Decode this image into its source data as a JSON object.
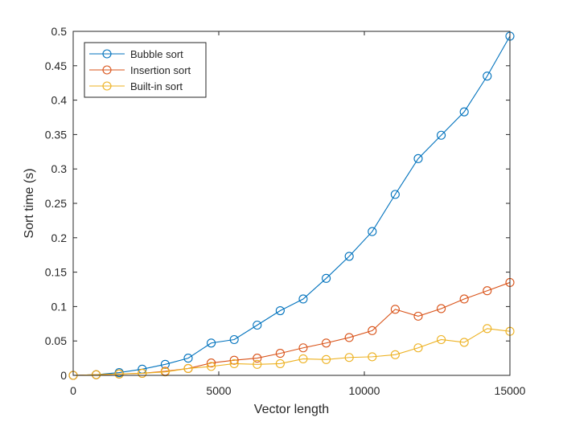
{
  "chart_data": {
    "type": "line",
    "title": "",
    "xlabel": "Vector length",
    "ylabel": "Sort time (s)",
    "xlim": [
      0,
      15000
    ],
    "ylim": [
      0,
      0.5
    ],
    "x_ticks": [
      0,
      5000,
      10000,
      15000
    ],
    "x_tick_labels": [
      "0",
      "5000",
      "10000",
      "15000"
    ],
    "y_ticks": [
      0,
      0.05,
      0.1,
      0.15,
      0.2,
      0.25,
      0.3,
      0.35,
      0.4,
      0.45,
      0.5
    ],
    "y_tick_labels": [
      "0",
      "0.05",
      "0.1",
      "0.15",
      "0.2",
      "0.25",
      "0.3",
      "0.35",
      "0.4",
      "0.45",
      "0.5"
    ],
    "grid": false,
    "legend_position": "top-left",
    "marker": "circle",
    "x": [
      0,
      790,
      1580,
      2370,
      3160,
      3950,
      4740,
      5530,
      6320,
      7110,
      7900,
      8690,
      9480,
      10270,
      11060,
      11850,
      12640,
      13430,
      14220,
      15000
    ],
    "series": [
      {
        "name": "Bubble sort",
        "color": "#0072BD",
        "values": [
          0,
          0.001,
          0.004,
          0.009,
          0.016,
          0.025,
          0.047,
          0.052,
          0.073,
          0.094,
          0.111,
          0.141,
          0.173,
          0.209,
          0.263,
          0.315,
          0.349,
          0.383,
          0.435,
          0.493
        ]
      },
      {
        "name": "Insertion sort",
        "color": "#D95319",
        "values": [
          0,
          0.001,
          0.002,
          0.003,
          0.006,
          0.01,
          0.018,
          0.022,
          0.025,
          0.032,
          0.04,
          0.047,
          0.055,
          0.065,
          0.096,
          0.086,
          0.097,
          0.111,
          0.123,
          0.135
        ]
      },
      {
        "name": "Built-in sort",
        "color": "#EDB120",
        "values": [
          0,
          0.001,
          0.002,
          0.003,
          0.005,
          0.01,
          0.013,
          0.017,
          0.016,
          0.017,
          0.024,
          0.023,
          0.026,
          0.027,
          0.03,
          0.04,
          0.052,
          0.048,
          0.068,
          0.064
        ]
      }
    ]
  }
}
